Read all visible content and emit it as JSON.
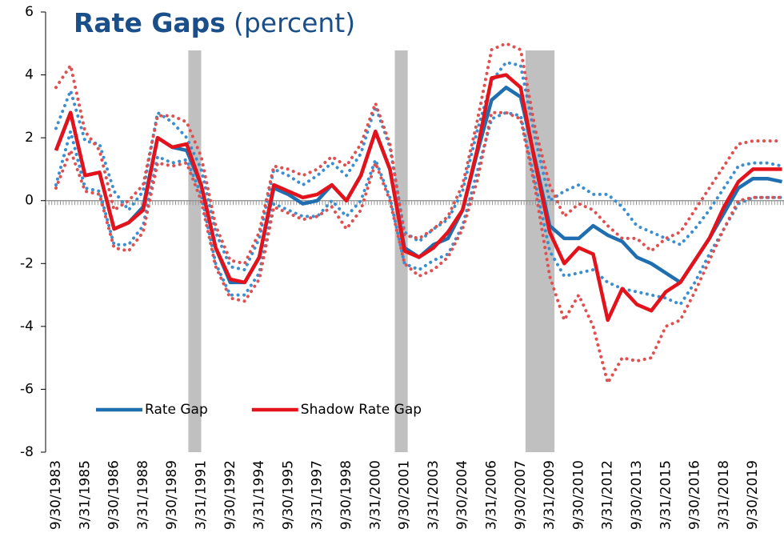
{
  "chart_data": {
    "type": "line",
    "title": "Rate Gaps",
    "subtitle": "(percent)",
    "categories": [
      "9/30/1983",
      null,
      "3/31/1985",
      null,
      "9/30/1986",
      null,
      "3/31/1988",
      null,
      "9/30/1989",
      null,
      "3/31/1991",
      null,
      "9/30/1992",
      null,
      "3/31/1994",
      null,
      "9/30/1995",
      null,
      "3/31/1997",
      null,
      "9/30/1998",
      null,
      "3/31/2000",
      null,
      "9/30/2001",
      null,
      "3/31/2003",
      null,
      "9/30/2004",
      null,
      "3/31/2006",
      null,
      "9/30/2007",
      null,
      "3/31/2009",
      null,
      "9/30/2010",
      null,
      "3/31/2012",
      null,
      "9/30/2013",
      null,
      "3/31/2015",
      null,
      "9/30/2016",
      null,
      "3/31/2018",
      null,
      "9/30/2019",
      null,
      null
    ],
    "series": [
      {
        "name": "Rate Gap",
        "color": "#1f6fb0",
        "values": [
          1.6,
          2.8,
          0.8,
          0.9,
          -0.9,
          -0.7,
          -0.2,
          2.0,
          1.7,
          1.6,
          0.5,
          -1.5,
          -2.6,
          -2.6,
          -1.8,
          0.4,
          0.2,
          -0.1,
          0.0,
          0.5,
          0.0,
          0.8,
          2.2,
          1.0,
          -1.5,
          -1.8,
          -1.4,
          -1.2,
          -0.3,
          1.5,
          3.2,
          3.6,
          3.3,
          1.3,
          -0.8,
          -1.2,
          -1.2,
          -0.8,
          -1.1,
          -1.3,
          -1.8,
          -2.0,
          -2.3,
          -2.6,
          -1.9,
          -1.2,
          -0.4,
          0.4,
          0.7,
          0.7,
          0.6
        ]
      },
      {
        "name": "Shadow Rate Gap",
        "color": "#e3121b",
        "values": [
          1.6,
          2.8,
          0.8,
          0.9,
          -0.9,
          -0.7,
          -0.3,
          2.0,
          1.7,
          1.8,
          0.5,
          -1.5,
          -2.5,
          -2.6,
          -1.8,
          0.5,
          0.3,
          0.1,
          0.2,
          0.5,
          0.0,
          0.8,
          2.2,
          1.0,
          -1.6,
          -1.8,
          -1.5,
          -1.0,
          -0.3,
          1.6,
          3.9,
          4.0,
          3.6,
          1.2,
          -1.0,
          -2.0,
          -1.5,
          -1.7,
          -3.8,
          -2.8,
          -3.3,
          -3.5,
          -2.9,
          -2.6,
          -1.9,
          -1.2,
          -0.2,
          0.6,
          1.0,
          1.0,
          1.0
        ]
      }
    ],
    "bands": [
      {
        "color": "#3b8fd0",
        "values": [
          2.3,
          3.5,
          1.9,
          1.8,
          0.3,
          -0.3,
          0.3,
          2.8,
          2.5,
          2.0,
          1.0,
          -1.0,
          -2.1,
          -2.2,
          -1.2,
          1.0,
          0.8,
          0.5,
          0.8,
          1.2,
          0.8,
          1.5,
          3.0,
          1.7,
          -1.0,
          -1.3,
          -0.9,
          -0.6,
          0.3,
          2.2,
          3.8,
          4.4,
          4.3,
          2.0,
          0.0,
          0.3,
          0.5,
          0.2,
          0.2,
          -0.2,
          -0.8,
          -1.0,
          -1.2,
          -1.4,
          -0.9,
          -0.3,
          0.4,
          1.1,
          1.2,
          1.2,
          1.1
        ]
      },
      {
        "color": "#3b8fd0",
        "values": [
          0.5,
          2.2,
          0.4,
          0.3,
          -1.4,
          -1.4,
          -0.8,
          1.4,
          1.2,
          1.3,
          0.2,
          -2.0,
          -3.0,
          -3.0,
          -2.3,
          -0.1,
          -0.3,
          -0.5,
          -0.5,
          0.0,
          -0.5,
          0.0,
          1.3,
          0.1,
          -2.0,
          -2.2,
          -1.9,
          -1.7,
          -0.8,
          0.9,
          2.6,
          2.8,
          2.7,
          0.6,
          -1.6,
          -2.4,
          -2.3,
          -2.2,
          -2.6,
          -2.8,
          -2.9,
          -3.0,
          -3.1,
          -3.3,
          -2.6,
          -1.7,
          -0.9,
          -0.1,
          0.1,
          0.1,
          0.1
        ]
      },
      {
        "color": "#e05050",
        "values": [
          3.6,
          4.3,
          2.2,
          1.6,
          -0.3,
          0.0,
          0.5,
          2.7,
          2.7,
          2.5,
          1.4,
          -0.8,
          -1.9,
          -2.0,
          -1.0,
          1.1,
          1.0,
          0.8,
          1.0,
          1.4,
          1.1,
          1.8,
          3.1,
          1.8,
          -1.1,
          -1.2,
          -0.9,
          -0.5,
          0.5,
          2.5,
          4.8,
          5.0,
          4.8,
          2.3,
          0.5,
          -0.5,
          -0.1,
          -0.3,
          -0.8,
          -1.2,
          -1.2,
          -1.6,
          -1.2,
          -1.0,
          -0.3,
          0.4,
          1.1,
          1.8,
          1.9,
          1.9,
          1.9
        ]
      },
      {
        "color": "#e05050",
        "values": [
          0.4,
          1.6,
          0.3,
          0.2,
          -1.5,
          -1.6,
          -1.0,
          1.2,
          1.1,
          1.2,
          0.0,
          -2.1,
          -3.1,
          -3.2,
          -2.5,
          -0.2,
          -0.4,
          -0.6,
          -0.5,
          -0.2,
          -0.9,
          -0.3,
          1.2,
          0.0,
          -2.0,
          -2.4,
          -2.2,
          -1.8,
          -0.9,
          0.6,
          2.8,
          2.8,
          2.6,
          0.4,
          -2.4,
          -3.8,
          -3.0,
          -4.0,
          -5.8,
          -5.0,
          -5.1,
          -5.0,
          -4.0,
          -3.8,
          -2.9,
          -1.9,
          -0.9,
          0.0,
          0.1,
          0.1,
          0.1
        ]
      }
    ],
    "recessions": [
      {
        "start": "7/31/1990",
        "end": "3/31/1991"
      },
      {
        "start": "3/31/2001",
        "end": "11/30/2001"
      },
      {
        "start": "12/31/2007",
        "end": "6/30/2009"
      }
    ],
    "recession_color": "#c0c0c0",
    "ylim": [
      -8,
      6
    ],
    "yticks": [
      -8,
      -6,
      -4,
      -2,
      0,
      2,
      4,
      6
    ],
    "grid": false,
    "legend": "lower left"
  }
}
